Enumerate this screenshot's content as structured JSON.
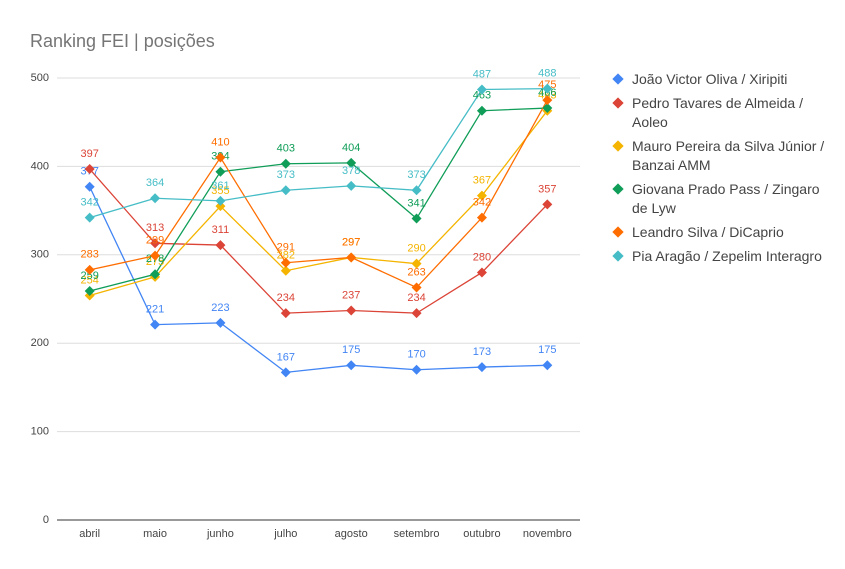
{
  "chart_data": {
    "type": "line",
    "title": "Ranking FEI | posições",
    "categories": [
      "abril",
      "maio",
      "junho",
      "julho",
      "agosto",
      "setembro",
      "outubro",
      "novembro"
    ],
    "series": [
      {
        "name": "João Victor Oliva / Xiripiti",
        "color": "#4285f4",
        "values": [
          377,
          221,
          223,
          167,
          175,
          170,
          173,
          175
        ]
      },
      {
        "name": "Pedro Tavares de Almeida / Aoleo",
        "color": "#db4437",
        "values": [
          397,
          313,
          311,
          234,
          237,
          234,
          280,
          357
        ]
      },
      {
        "name": "Mauro Pereira da Silva Júnior / Banzai AMM",
        "color": "#f4b400",
        "values": [
          254,
          275,
          355,
          282,
          297,
          290,
          367,
          463
        ]
      },
      {
        "name": "Giovana Prado Pass / Zingaro de Lyw",
        "color": "#0f9d58",
        "values": [
          259,
          278,
          394,
          403,
          404,
          341,
          463,
          466
        ]
      },
      {
        "name": "Leandro Silva / DiCaprio",
        "color": "#ff6d00",
        "values": [
          283,
          299,
          410,
          291,
          297,
          263,
          342,
          475
        ]
      },
      {
        "name": "Pia Aragão / Zepelim Interagro",
        "color": "#46bdc6",
        "values": [
          342,
          364,
          361,
          373,
          378,
          373,
          487,
          488
        ]
      }
    ],
    "ylim": [
      0,
      500
    ],
    "yticks": [
      0,
      100,
      200,
      300,
      400,
      500
    ],
    "grid": true,
    "legend": "right"
  }
}
